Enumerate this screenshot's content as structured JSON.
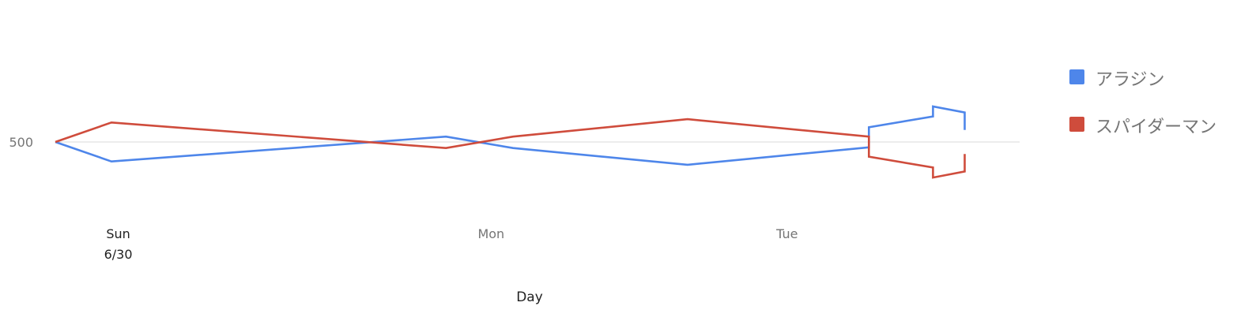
{
  "chart_data": {
    "type": "line",
    "title": "",
    "xlabel": "Day",
    "ylabel": "",
    "x_ticks": [
      {
        "label": "Sun",
        "sublabel": "6/30",
        "x": 1.03
      },
      {
        "label": "Mon",
        "sublabel": "",
        "x": 7.14
      },
      {
        "label": "Tue",
        "sublabel": "",
        "x": 11.99
      }
    ],
    "y_ticks": [
      500
    ],
    "xlim": [
      0,
      15.8
    ],
    "ylim": [
      300,
      700
    ],
    "grid": true,
    "legend_position": "right",
    "series": [
      {
        "name": "アラジン",
        "color": "#4e86ea",
        "points": [
          [
            0.0,
            500
          ],
          [
            0.92,
            471
          ],
          [
            6.4,
            508
          ],
          [
            7.5,
            491
          ],
          [
            10.36,
            466
          ],
          [
            13.33,
            492
          ],
          [
            13.33,
            522
          ],
          [
            14.38,
            538
          ],
          [
            14.38,
            553
          ],
          [
            14.9,
            544
          ],
          [
            14.9,
            518
          ]
        ]
      },
      {
        "name": "スパイダーマン",
        "color": "#cf4c3c",
        "points": [
          [
            0.0,
            500
          ],
          [
            0.92,
            529
          ],
          [
            6.4,
            491
          ],
          [
            7.5,
            508
          ],
          [
            10.36,
            534
          ],
          [
            13.33,
            508
          ],
          [
            13.33,
            478
          ],
          [
            14.38,
            462
          ],
          [
            14.38,
            447
          ],
          [
            14.9,
            456
          ],
          [
            14.9,
            482
          ]
        ]
      }
    ]
  }
}
